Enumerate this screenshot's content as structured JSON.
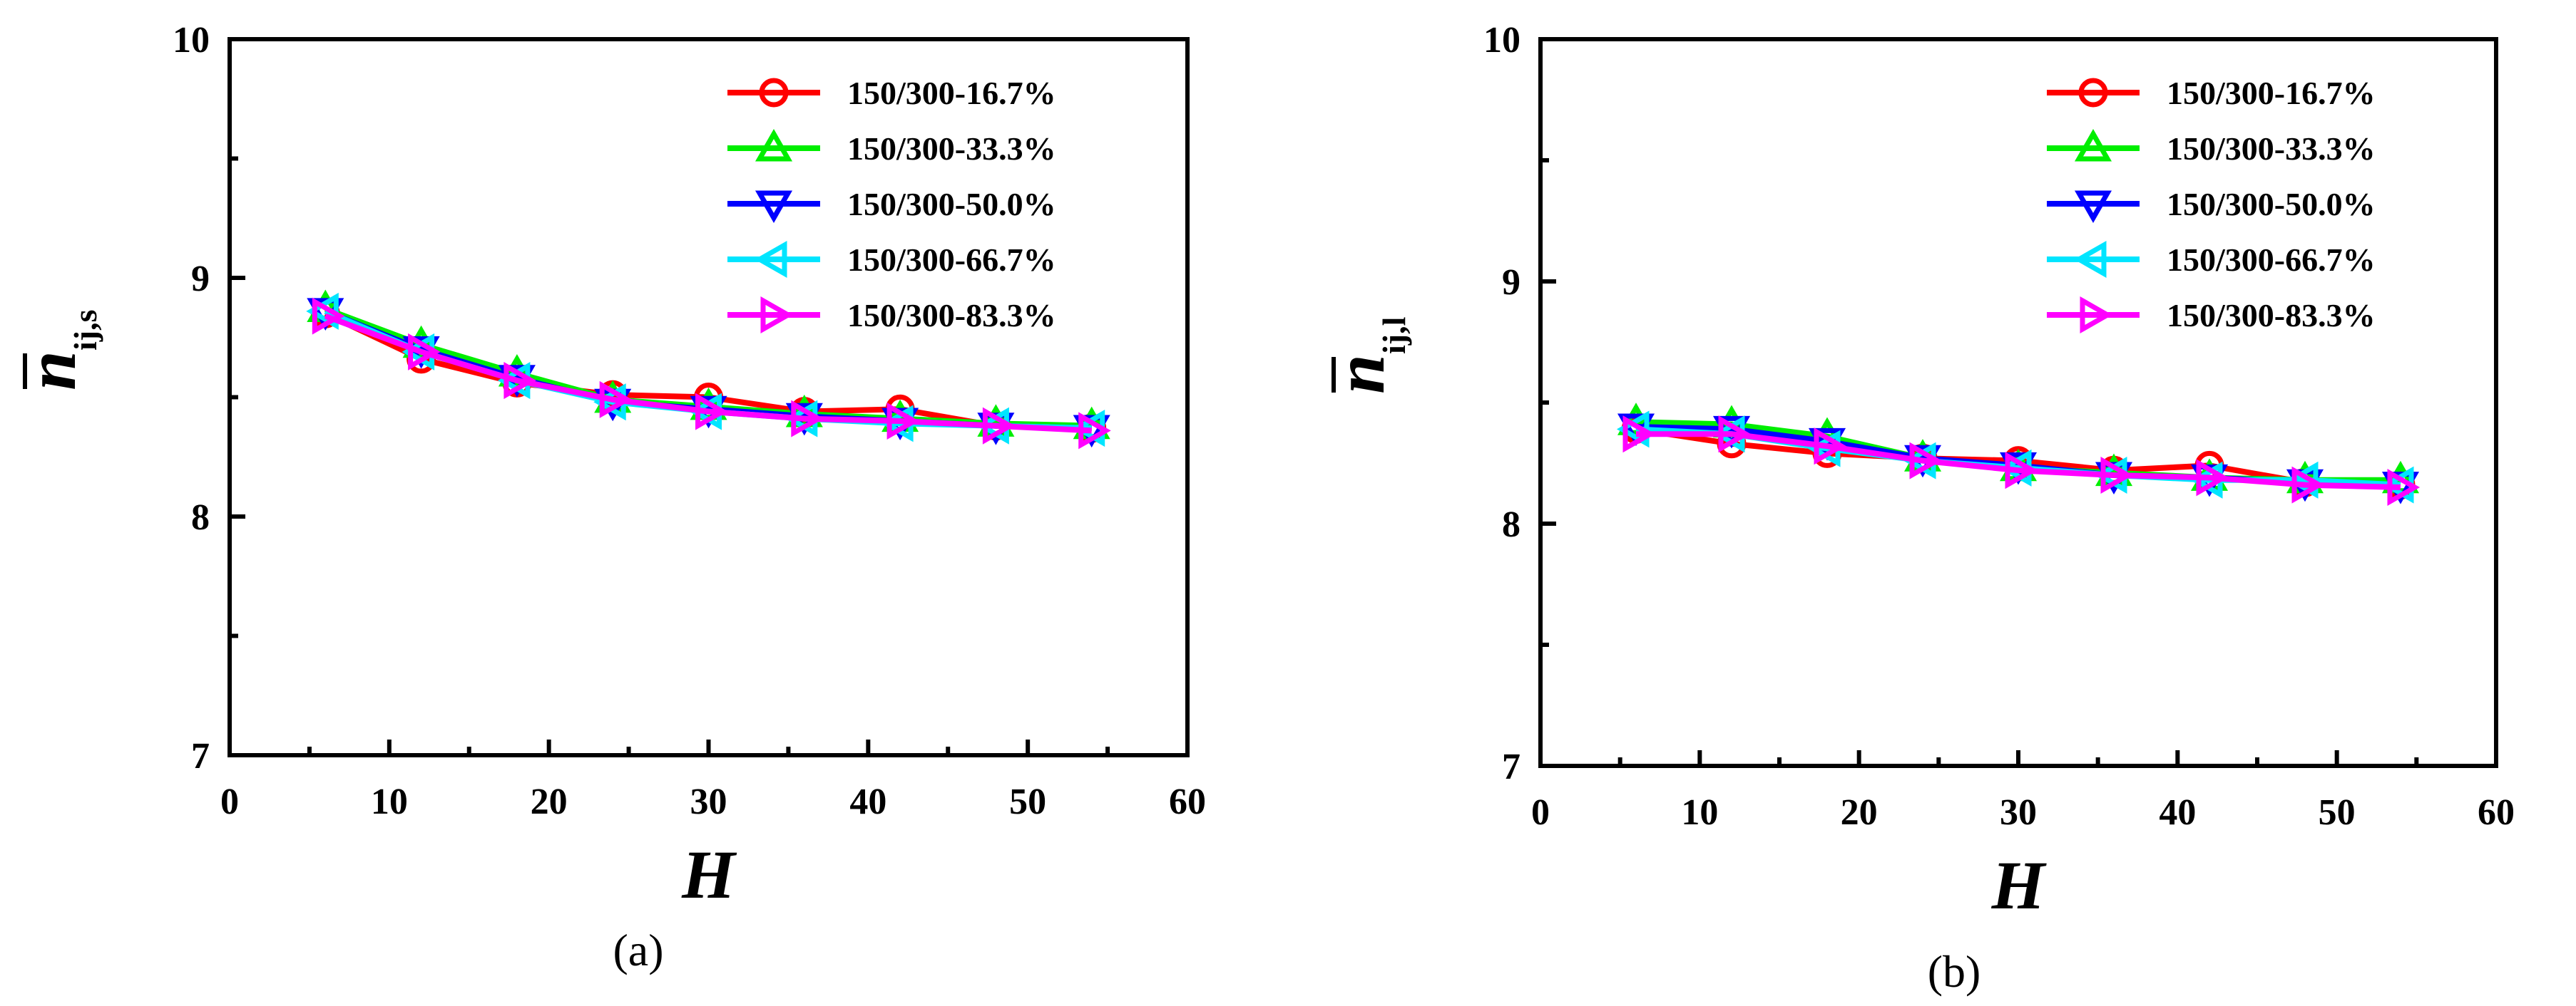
{
  "chart_data": [
    {
      "type": "line",
      "panel_label": "(a)",
      "xlabel": "H",
      "ylabel_symbol": "n",
      "ylabel_subscript": "ij,s",
      "xlim": [
        0,
        60
      ],
      "ylim": [
        7,
        10
      ],
      "xticks": [
        "0",
        "10",
        "20",
        "30",
        "40",
        "50",
        "60"
      ],
      "yticks": [
        "7",
        "8",
        "9",
        "10"
      ],
      "x": [
        6,
        12,
        18,
        24,
        30,
        36,
        42,
        48,
        54
      ],
      "legend_position": "top-right",
      "grid": false,
      "series": [
        {
          "name": "150/300-16.7%",
          "color": "#ff0000",
          "marker": "circle",
          "values": [
            8.85,
            8.66,
            8.56,
            8.51,
            8.5,
            8.44,
            8.45,
            8.38,
            8.37
          ]
        },
        {
          "name": "150/300-33.3%",
          "color": "#00ee00",
          "marker": "triangle-up",
          "values": [
            8.87,
            8.72,
            8.6,
            8.49,
            8.46,
            8.43,
            8.41,
            8.39,
            8.38
          ]
        },
        {
          "name": "150/300-50.0%",
          "color": "#0000ff",
          "marker": "triangle-down",
          "values": [
            8.86,
            8.7,
            8.58,
            8.48,
            8.45,
            8.42,
            8.4,
            8.38,
            8.37
          ]
        },
        {
          "name": "150/300-66.7%",
          "color": "#00e5ff",
          "marker": "triangle-left",
          "values": [
            8.86,
            8.69,
            8.57,
            8.48,
            8.44,
            8.41,
            8.39,
            8.38,
            8.37
          ]
        },
        {
          "name": "150/300-83.3%",
          "color": "#ff00ff",
          "marker": "triangle-right",
          "values": [
            8.84,
            8.69,
            8.57,
            8.49,
            8.44,
            8.41,
            8.4,
            8.38,
            8.36
          ]
        }
      ]
    },
    {
      "type": "line",
      "panel_label": "(b)",
      "xlabel": "H",
      "ylabel_symbol": "n",
      "ylabel_subscript": "ij,l",
      "xlim": [
        0,
        60
      ],
      "ylim": [
        7,
        10
      ],
      "xticks": [
        "0",
        "10",
        "20",
        "30",
        "40",
        "50",
        "60"
      ],
      "yticks": [
        "7",
        "8",
        "9",
        "10"
      ],
      "x": [
        6,
        12,
        18,
        24,
        30,
        36,
        42,
        48,
        54
      ],
      "legend_position": "top-right",
      "grid": false,
      "series": [
        {
          "name": "150/300-16.7%",
          "color": "#ff0000",
          "marker": "circle",
          "values": [
            8.39,
            8.33,
            8.29,
            8.27,
            8.26,
            8.22,
            8.24,
            8.17,
            8.16
          ]
        },
        {
          "name": "150/300-33.3%",
          "color": "#00ee00",
          "marker": "triangle-up",
          "values": [
            8.42,
            8.41,
            8.36,
            8.27,
            8.23,
            8.21,
            8.19,
            8.18,
            8.18
          ]
        },
        {
          "name": "150/300-50.0%",
          "color": "#0000ff",
          "marker": "triangle-down",
          "values": [
            8.4,
            8.39,
            8.34,
            8.27,
            8.24,
            8.2,
            8.19,
            8.17,
            8.16
          ]
        },
        {
          "name": "150/300-66.7%",
          "color": "#00e5ff",
          "marker": "triangle-left",
          "values": [
            8.39,
            8.37,
            8.31,
            8.26,
            8.23,
            8.2,
            8.18,
            8.18,
            8.16
          ]
        },
        {
          "name": "150/300-83.3%",
          "color": "#ff00ff",
          "marker": "triangle-right",
          "values": [
            8.37,
            8.37,
            8.32,
            8.26,
            8.22,
            8.2,
            8.19,
            8.16,
            8.15
          ]
        }
      ]
    }
  ]
}
